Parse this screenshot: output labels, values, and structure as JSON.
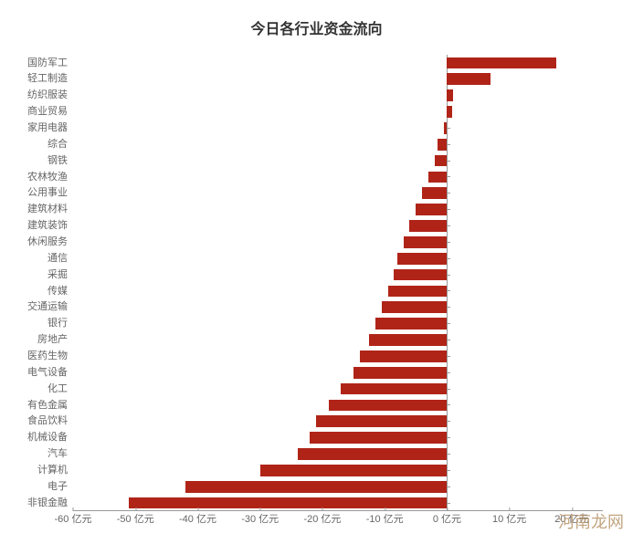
{
  "chart": {
    "type": "bar",
    "title": "今日各行业资金流向",
    "title_fontsize": 16,
    "title_color": "#333333",
    "background_color": "#ffffff",
    "bar_color": "#b02418",
    "bar_fill_ratio": 0.72,
    "axis_color": "#999999",
    "label_color": "#666666",
    "label_fontsize": 11,
    "xlim": [
      -60,
      25
    ],
    "xtick_step": 10,
    "x_unit": "亿元",
    "categories": [
      "国防军工",
      "轻工制造",
      "纺织服装",
      "商业贸易",
      "家用电器",
      "综合",
      "钢铁",
      "农林牧渔",
      "公用事业",
      "建筑材料",
      "建筑装饰",
      "休闲服务",
      "通信",
      "采掘",
      "传媒",
      "交通运输",
      "银行",
      "房地产",
      "医药生物",
      "电气设备",
      "化工",
      "有色金属",
      "食品饮料",
      "机械设备",
      "汽车",
      "计算机",
      "电子",
      "非银金融"
    ],
    "values": [
      17.5,
      7.0,
      1.0,
      0.8,
      -0.5,
      -1.5,
      -2.0,
      -3.0,
      -4.0,
      -5.0,
      -6.0,
      -7.0,
      -8.0,
      -8.5,
      -9.5,
      -10.5,
      -11.5,
      -12.5,
      -14.0,
      -15.0,
      -17.0,
      -19.0,
      -21.0,
      -22.0,
      -24.0,
      -30.0,
      -42.0,
      -51.0
    ]
  },
  "watermark": "河南龙网"
}
